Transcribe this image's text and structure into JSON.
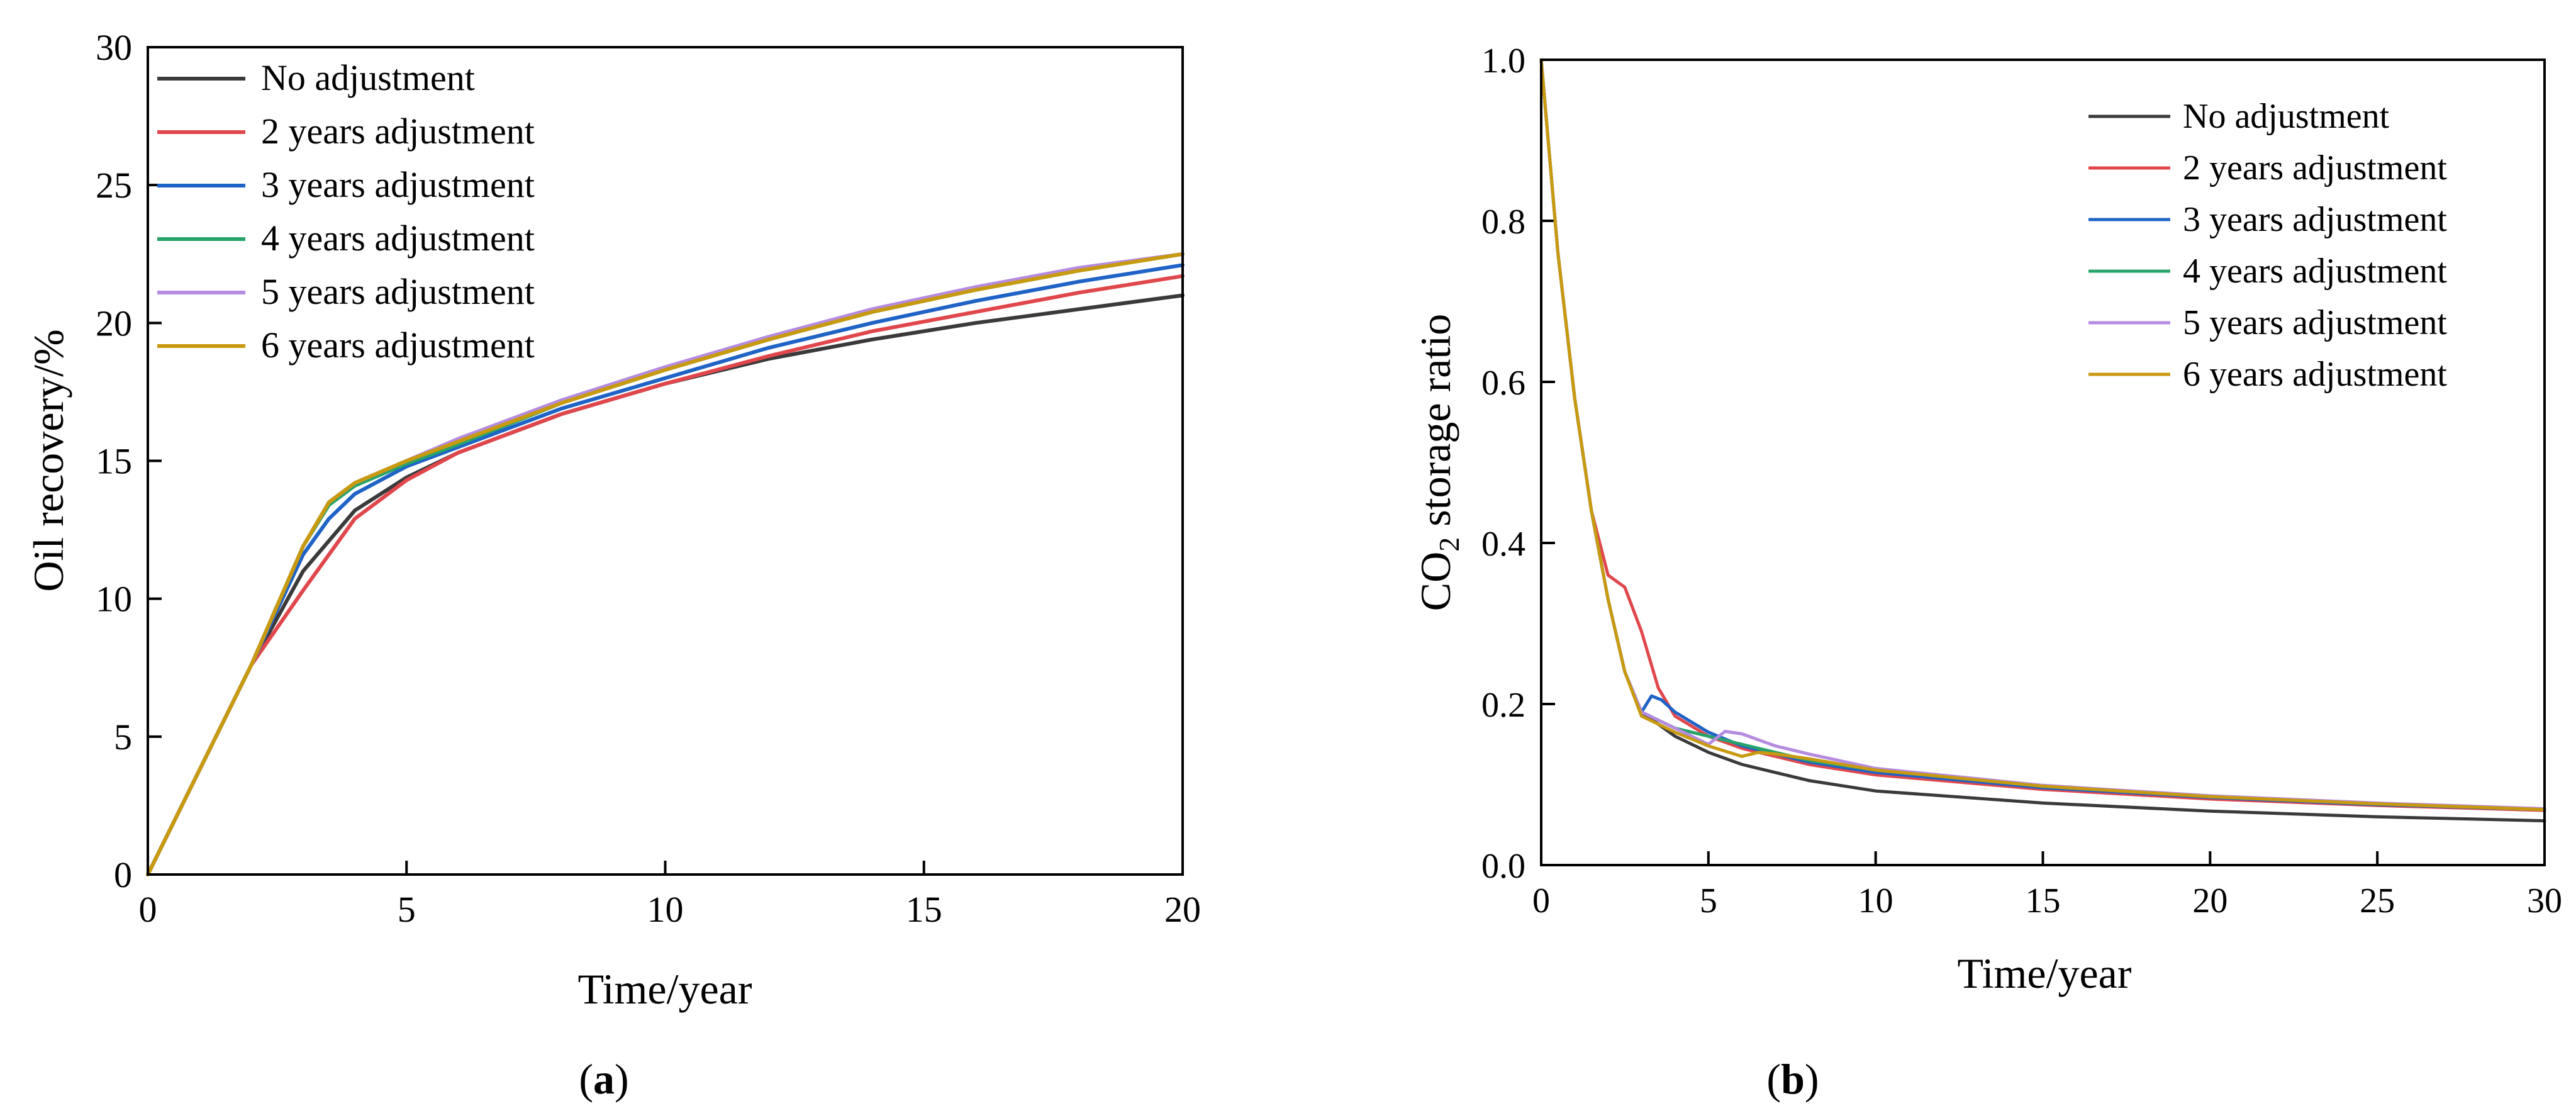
{
  "figure": {
    "panel_a_label": "a",
    "panel_b_label": "b"
  },
  "chart_data": [
    {
      "id": "a",
      "type": "line",
      "title": "",
      "xlabel": "Time/year",
      "ylabel": "Oil recovery/%",
      "xlim": [
        0,
        20
      ],
      "ylim": [
        0,
        30
      ],
      "xticks": [
        0,
        5,
        10,
        15,
        20
      ],
      "yticks": [
        0,
        5,
        10,
        15,
        20,
        25,
        30
      ],
      "legend_position": "top-left",
      "series": [
        {
          "name": "No adjustment",
          "color": "#3a3a3a",
          "x": [
            0,
            1,
            2,
            3,
            4,
            5,
            6,
            8,
            10,
            12,
            14,
            16,
            18,
            20
          ],
          "y": [
            0,
            3.8,
            7.6,
            11.0,
            13.2,
            14.4,
            15.3,
            16.7,
            17.8,
            18.7,
            19.4,
            20.0,
            20.5,
            21.0
          ]
        },
        {
          "name": "2 years adjustment",
          "color": "#e0474c",
          "x": [
            0,
            1,
            2,
            3,
            4,
            5,
            6,
            8,
            10,
            12,
            14,
            16,
            18,
            20
          ],
          "y": [
            0,
            3.8,
            7.6,
            10.3,
            12.9,
            14.3,
            15.3,
            16.7,
            17.8,
            18.8,
            19.7,
            20.4,
            21.1,
            21.7
          ]
        },
        {
          "name": "3 years adjustment",
          "color": "#1f63c6",
          "x": [
            0,
            1,
            2,
            3,
            3.5,
            4,
            5,
            6,
            8,
            10,
            12,
            14,
            16,
            18,
            20
          ],
          "y": [
            0,
            3.8,
            7.6,
            11.6,
            12.9,
            13.8,
            14.8,
            15.5,
            16.9,
            18.0,
            19.1,
            20.0,
            20.8,
            21.5,
            22.1
          ]
        },
        {
          "name": "4 years adjustment",
          "color": "#27a36b",
          "x": [
            0,
            1,
            2,
            3,
            3.5,
            4,
            5,
            6,
            8,
            10,
            12,
            14,
            16,
            18,
            20
          ],
          "y": [
            0,
            3.8,
            7.6,
            11.9,
            13.4,
            14.1,
            14.9,
            15.6,
            17.1,
            18.3,
            19.4,
            20.4,
            21.2,
            21.9,
            22.5
          ]
        },
        {
          "name": "5 years adjustment",
          "color": "#b58be0",
          "x": [
            0,
            1,
            2,
            3,
            3.5,
            4,
            5,
            6,
            8,
            10,
            12,
            14,
            16,
            18,
            20
          ],
          "y": [
            0,
            3.8,
            7.6,
            11.9,
            13.5,
            14.2,
            15.0,
            15.8,
            17.2,
            18.4,
            19.5,
            20.5,
            21.3,
            22.0,
            22.5
          ]
        },
        {
          "name": "6 years adjustment",
          "color": "#c89a10",
          "x": [
            0,
            1,
            2,
            3,
            3.5,
            4,
            5,
            6,
            8,
            10,
            12,
            14,
            16,
            18,
            20
          ],
          "y": [
            0,
            3.8,
            7.6,
            11.9,
            13.5,
            14.2,
            15.0,
            15.7,
            17.1,
            18.3,
            19.4,
            20.4,
            21.2,
            21.9,
            22.5
          ]
        }
      ]
    },
    {
      "id": "b",
      "type": "line",
      "title": "",
      "xlabel": "Time/year",
      "ylabel_prefix": "CO",
      "ylabel_subscript": "2",
      "ylabel_suffix": " storage ratio",
      "xlim": [
        0,
        30
      ],
      "ylim": [
        0,
        1
      ],
      "xticks": [
        0,
        5,
        10,
        15,
        20,
        25,
        30
      ],
      "xtick_labels": [
        "0",
        "5",
        "10",
        "15",
        "20",
        "25",
        "30"
      ],
      "yticks": [
        0,
        0.2,
        0.4,
        0.6,
        0.8,
        1.0
      ],
      "ytick_labels": [
        "0.0",
        "0.2",
        "0.4",
        "0.6",
        "0.8",
        "1.0"
      ],
      "legend_position": "top-right",
      "series": [
        {
          "name": "No adjustment",
          "color": "#3a3a3a",
          "x": [
            0,
            0.5,
            1,
            1.5,
            2,
            2.5,
            3,
            4,
            5,
            6,
            8,
            10,
            15,
            20,
            25,
            30
          ],
          "y": [
            1.0,
            0.76,
            0.58,
            0.44,
            0.33,
            0.24,
            0.19,
            0.16,
            0.14,
            0.125,
            0.105,
            0.092,
            0.077,
            0.067,
            0.06,
            0.055
          ]
        },
        {
          "name": "2 years adjustment",
          "color": "#e0474c",
          "x": [
            0,
            0.5,
            1,
            1.5,
            2,
            2.5,
            3,
            3.5,
            4,
            5,
            6,
            8,
            10,
            15,
            20,
            25,
            30
          ],
          "y": [
            1.0,
            0.76,
            0.58,
            0.44,
            0.36,
            0.345,
            0.29,
            0.22,
            0.185,
            0.16,
            0.145,
            0.125,
            0.112,
            0.094,
            0.082,
            0.074,
            0.068
          ]
        },
        {
          "name": "3 years adjustment",
          "color": "#1f63c6",
          "x": [
            0,
            0.5,
            1,
            1.5,
            2,
            2.5,
            3,
            3.3,
            3.6,
            4,
            5,
            6,
            8,
            10,
            15,
            20,
            25,
            30
          ],
          "y": [
            1.0,
            0.76,
            0.58,
            0.44,
            0.33,
            0.24,
            0.19,
            0.21,
            0.205,
            0.19,
            0.165,
            0.148,
            0.128,
            0.115,
            0.096,
            0.084,
            0.075,
            0.069
          ]
        },
        {
          "name": "4 years adjustment",
          "color": "#27a36b",
          "x": [
            0,
            0.5,
            1,
            1.5,
            2,
            2.5,
            3,
            4,
            4.5,
            5,
            6,
            8,
            10,
            15,
            20,
            25,
            30
          ],
          "y": [
            1.0,
            0.76,
            0.58,
            0.44,
            0.33,
            0.24,
            0.19,
            0.17,
            0.165,
            0.16,
            0.15,
            0.13,
            0.118,
            0.098,
            0.085,
            0.076,
            0.069
          ]
        },
        {
          "name": "5 years adjustment",
          "color": "#b58be0",
          "x": [
            0,
            0.5,
            1,
            1.5,
            2,
            2.5,
            3,
            4,
            5,
            5.5,
            6,
            7,
            8,
            10,
            15,
            20,
            25,
            30
          ],
          "y": [
            1.0,
            0.76,
            0.58,
            0.44,
            0.33,
            0.24,
            0.19,
            0.17,
            0.15,
            0.166,
            0.163,
            0.148,
            0.138,
            0.12,
            0.099,
            0.086,
            0.077,
            0.07
          ]
        },
        {
          "name": "6 years adjustment",
          "color": "#c89a10",
          "x": [
            0,
            0.5,
            1,
            1.5,
            2,
            2.5,
            3,
            4,
            5,
            6,
            6.5,
            7,
            8,
            10,
            15,
            20,
            25,
            30
          ],
          "y": [
            1.0,
            0.76,
            0.58,
            0.44,
            0.33,
            0.24,
            0.185,
            0.165,
            0.148,
            0.135,
            0.14,
            0.138,
            0.132,
            0.118,
            0.098,
            0.085,
            0.076,
            0.069
          ]
        }
      ]
    }
  ]
}
